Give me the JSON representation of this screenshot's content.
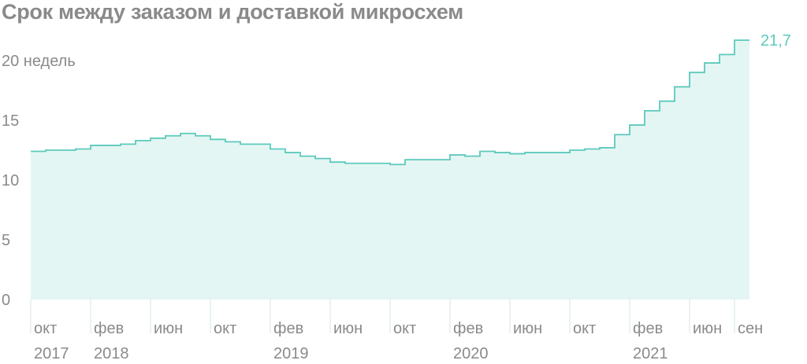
{
  "title": "Срок между заказом и доставкой микросхем",
  "chart_data": {
    "type": "area",
    "step": true,
    "title": "Срок между заказом и доставкой микросхем",
    "ylabel_unit": "недель",
    "ylim": [
      0,
      21.7
    ],
    "y_ticks": [
      {
        "value": 0,
        "label": "0"
      },
      {
        "value": 5,
        "label": "5"
      },
      {
        "value": 10,
        "label": "10"
      },
      {
        "value": 15,
        "label": "15"
      },
      {
        "value": 20,
        "label": "20 недель"
      }
    ],
    "x_ticks": [
      {
        "month": "окт",
        "year": "2017"
      },
      {
        "month": "фев",
        "year": "2018"
      },
      {
        "month": "июн",
        "year": ""
      },
      {
        "month": "окт",
        "year": ""
      },
      {
        "month": "фев",
        "year": "2019"
      },
      {
        "month": "июн",
        "year": ""
      },
      {
        "month": "окт",
        "year": ""
      },
      {
        "month": "фев",
        "year": "2020"
      },
      {
        "month": "июн",
        "year": ""
      },
      {
        "month": "окт",
        "year": ""
      },
      {
        "month": "фев",
        "year": "2021"
      },
      {
        "month": "июн",
        "year": ""
      },
      {
        "month": "сен",
        "year": ""
      }
    ],
    "series": [
      {
        "x": [
          "2017-10",
          "2017-11",
          "2017-12",
          "2018-01",
          "2018-02",
          "2018-03",
          "2018-04",
          "2018-05",
          "2018-06",
          "2018-07",
          "2018-08",
          "2018-09",
          "2018-10",
          "2018-11",
          "2018-12",
          "2019-01",
          "2019-02",
          "2019-03",
          "2019-04",
          "2019-05",
          "2019-06",
          "2019-07",
          "2019-08",
          "2019-09",
          "2019-10",
          "2019-11",
          "2019-12",
          "2020-01",
          "2020-02",
          "2020-03",
          "2020-04",
          "2020-05",
          "2020-06",
          "2020-07",
          "2020-08",
          "2020-09",
          "2020-10",
          "2020-11",
          "2020-12",
          "2021-01",
          "2021-02",
          "2021-03",
          "2021-04",
          "2021-05",
          "2021-06",
          "2021-07",
          "2021-08",
          "2021-09"
        ],
        "values": [
          12.4,
          12.5,
          12.5,
          12.6,
          12.9,
          12.9,
          13.0,
          13.3,
          13.5,
          13.7,
          13.9,
          13.7,
          13.4,
          13.2,
          13.0,
          13.0,
          12.6,
          12.3,
          12.0,
          11.8,
          11.5,
          11.4,
          11.4,
          11.4,
          11.3,
          11.7,
          11.7,
          11.7,
          12.1,
          12.0,
          12.4,
          12.3,
          12.2,
          12.3,
          12.3,
          12.3,
          12.5,
          12.6,
          12.7,
          13.8,
          14.6,
          15.8,
          16.6,
          17.8,
          19.0,
          19.8,
          20.5,
          21.7
        ]
      }
    ],
    "last_value_label": "21,7",
    "colors": {
      "line": "#5cc9bc",
      "fill": "#e4f6f3",
      "axis_text": "#8a8a8a",
      "grid": "#d4e7e4"
    }
  }
}
